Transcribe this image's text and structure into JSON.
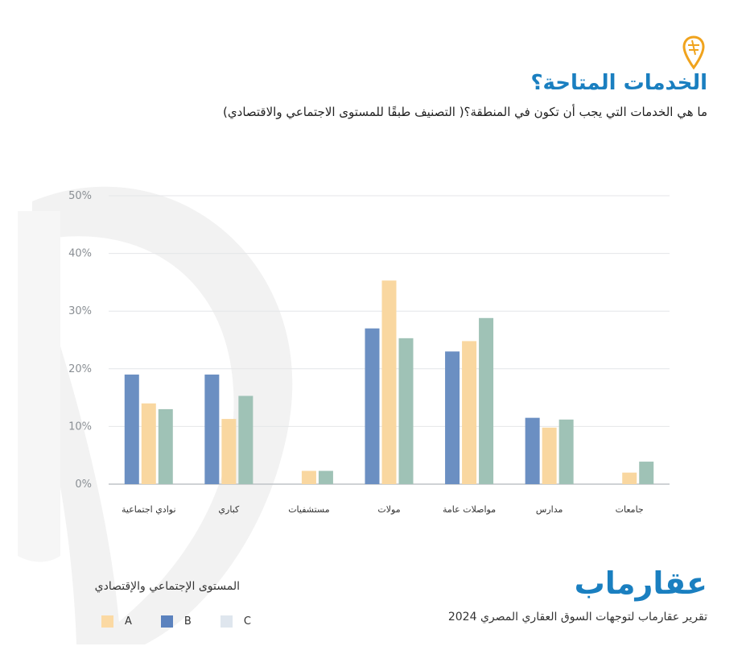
{
  "header": {
    "title": "الخدمات المتاحة؟",
    "subtitle": "ما هي الخدمات التي يجب أن تكون في المنطقة؟( التصنيف طبقًا للمستوى الاجتماعي والاقتصادي)"
  },
  "icons": {
    "pin": "location-pin-icon"
  },
  "chart_data": {
    "type": "bar",
    "categories": [
      "نوادي اجتماعية",
      "كباري",
      "مستشفيات",
      "مولات",
      "مواصلات عامة",
      "مدارس",
      "جامعات"
    ],
    "series": [
      {
        "name": "B",
        "color": "#6b8fc2",
        "values": [
          19,
          19,
          null,
          27,
          23,
          11.5,
          null
        ]
      },
      {
        "name": "A",
        "color": "#f9d7a0",
        "values": [
          14,
          11.3,
          2.3,
          35.3,
          24.8,
          9.8,
          2
        ]
      },
      {
        "name": "C",
        "color": "#9fc2b6",
        "values": [
          13,
          15.3,
          2.3,
          25.3,
          28.8,
          11.2,
          3.9
        ]
      }
    ],
    "y_ticks": [
      "0%",
      "10%",
      "20%",
      "30%",
      "40%",
      "50%"
    ],
    "ylim": [
      0,
      50
    ],
    "grid": true
  },
  "legend": {
    "title": "المستوى الإجتماعي والإقتصادي",
    "items": [
      {
        "label": "A",
        "color": "#fbd9a3"
      },
      {
        "label": "B",
        "color": "#5b82be"
      },
      {
        "label": "C",
        "color": "#dfe6ee"
      }
    ]
  },
  "footer": {
    "brand": "عقارماب",
    "report": "تقرير عقارماب لتوجهات السوق العقاري المصري 2024"
  }
}
